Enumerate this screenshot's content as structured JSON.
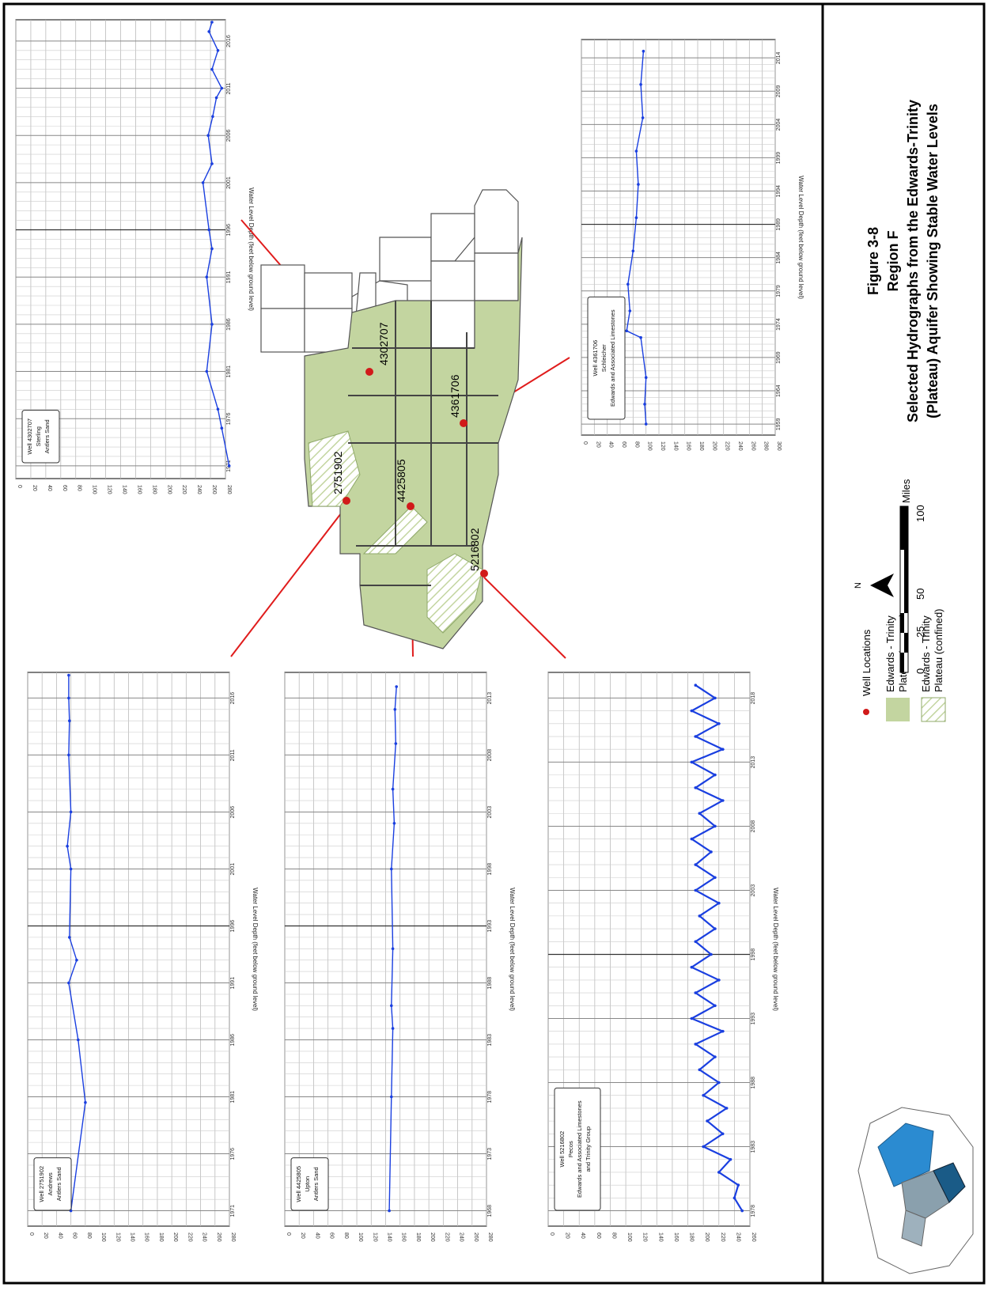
{
  "figure": {
    "title_line1": "Figure 3-8",
    "title_line2": "Region F",
    "title_line3": "Selected Hydrographs from the Edwards-Trinity",
    "title_line4": "(Plateau) Aquifer Showing Stable Water Levels"
  },
  "legend": {
    "well_locations": "Well Locations",
    "outcrop_line1": "Edwards - Trinity",
    "outcrop_line2": "Plateau (outcrop)",
    "confined_line1": "Edwards - Trinity",
    "confined_line2": "Plateau (confined)",
    "outcrop_color": "#c3d5a0",
    "point_color": "#d11a1a"
  },
  "scale_bar": {
    "ticks": [
      "0",
      "25",
      "50",
      "100"
    ],
    "unit": "Miles",
    "north": "N"
  },
  "map": {
    "well_labels": [
      "2751902",
      "4425805",
      "4302707",
      "4361706",
      "5216802"
    ]
  },
  "chart_data": [
    {
      "type": "line",
      "ylabel": "Water Level Depth (feet below ground level)",
      "title_lines": [
        "Well 2751902",
        "Andrews",
        "Antlers Sand"
      ],
      "ylim": [
        280,
        0
      ],
      "yticks": [
        "0",
        "20",
        "40",
        "60",
        "80",
        "100",
        "120",
        "140",
        "160",
        "180",
        "200",
        "220",
        "240",
        "260",
        "280"
      ],
      "xticks": [
        "1971",
        "1976",
        "1981",
        "1986",
        "1991",
        "1996",
        "2001",
        "2006",
        "2011",
        "2016"
      ],
      "x": [
        1971.0,
        1980.5,
        1986.0,
        1991.0,
        1993.0,
        1995.0,
        2001.0,
        2003.0,
        2006.0,
        2011.0,
        2014.0,
        2016.0,
        2018.0
      ],
      "y": [
        60,
        80,
        70,
        57,
        68,
        58,
        60,
        55,
        60,
        57,
        58,
        57,
        57
      ]
    },
    {
      "type": "line",
      "ylabel": "Water Level Depth (feet below ground level)",
      "title_lines": [
        "Well 4425805",
        "Upton",
        "Antlers Sand"
      ],
      "ylim": [
        280,
        0
      ],
      "yticks": [
        "0",
        "20",
        "40",
        "60",
        "80",
        "100",
        "120",
        "140",
        "160",
        "180",
        "200",
        "220",
        "240",
        "260",
        "280"
      ],
      "xticks": [
        "1968",
        "1973",
        "1978",
        "1983",
        "1988",
        "1993",
        "1998",
        "2003",
        "2008",
        "2013"
      ],
      "x": [
        1968.0,
        1978.0,
        1984.0,
        1986.0,
        1991.0,
        1998.0,
        2002.0,
        2005.0,
        2009.0,
        2012.0,
        2014.0
      ],
      "y": [
        145,
        148,
        150,
        148,
        150,
        148,
        152,
        150,
        154,
        153,
        155
      ]
    },
    {
      "type": "line",
      "ylabel": "Water Level Depth (feet below ground level)",
      "title_lines": [
        "Well 5216802",
        "Pecos",
        "Edwards and Associated Limestones",
        "and Trinity Group"
      ],
      "ylim": [
        260,
        0
      ],
      "yticks": [
        "0",
        "20",
        "40",
        "60",
        "80",
        "100",
        "120",
        "140",
        "160",
        "180",
        "200",
        "220",
        "240",
        "260"
      ],
      "xticks": [
        "1978",
        "1983",
        "1988",
        "1993",
        "1998",
        "2003",
        "2008",
        "2013",
        "2018"
      ],
      "x": [
        1978.0,
        1979.0,
        1980.0,
        1981.0,
        1982.0,
        1983.0,
        1984.0,
        1985.0,
        1986.0,
        1987.0,
        1988.0,
        1989.0,
        1990.0,
        1991.0,
        1992.0,
        1993.0,
        1994.0,
        1995.0,
        1996.0,
        1997.0,
        1998.0,
        1999.0,
        2000.0,
        2001.0,
        2002.0,
        2003.0,
        2004.0,
        2005.0,
        2006.0,
        2007.0,
        2008.0,
        2009.0,
        2010.0,
        2011.0,
        2012.0,
        2013.0,
        2014.0,
        2015.0,
        2016.0,
        2017.0,
        2018.0,
        2019.0
      ],
      "y": [
        250,
        240,
        245,
        220,
        235,
        200,
        225,
        205,
        230,
        200,
        220,
        195,
        215,
        190,
        225,
        185,
        215,
        190,
        220,
        185,
        210,
        190,
        215,
        195,
        220,
        190,
        215,
        190,
        210,
        185,
        215,
        195,
        225,
        190,
        215,
        185,
        225,
        190,
        220,
        185,
        215,
        190
      ]
    },
    {
      "type": "line",
      "ylabel": "Water Level Depth (feet below ground level)",
      "title_lines": [
        "Well 4302707",
        "Sterling",
        "Antlers Sand"
      ],
      "ylim": [
        280,
        0
      ],
      "yticks": [
        "0",
        "20",
        "40",
        "60",
        "80",
        "100",
        "120",
        "140",
        "160",
        "180",
        "200",
        "220",
        "240",
        "260",
        "280"
      ],
      "xticks": [
        "1971",
        "1976",
        "1981",
        "1986",
        "1991",
        "1996",
        "2001",
        "2006",
        "2011",
        "2016"
      ],
      "x": [
        1971.0,
        1975.0,
        1977.0,
        1981.0,
        1986.0,
        1991.0,
        1994.0,
        1996.0,
        2001.0,
        2003.0,
        2006.0,
        2008.0,
        2010.0,
        2011.0,
        2013.0,
        2015.0,
        2017.0,
        2018.0
      ],
      "y": [
        285,
        275,
        270,
        255,
        262,
        255,
        262,
        258,
        250,
        262,
        257,
        263,
        268,
        275,
        262,
        270,
        258,
        262
      ]
    },
    {
      "type": "line",
      "ylabel": "Water Level Depth (feet below ground level)",
      "title_lines": [
        "Well 4361706",
        "Schleicher",
        "Edwards and Associated Limestones"
      ],
      "ylim": [
        300,
        0
      ],
      "yticks": [
        "0",
        "20",
        "40",
        "60",
        "80",
        "100",
        "120",
        "140",
        "160",
        "180",
        "200",
        "220",
        "240",
        "260",
        "280",
        "300"
      ],
      "xticks": [
        "1959",
        "1964",
        "1969",
        "1974",
        "1979",
        "1984",
        "1989",
        "1994",
        "1999",
        "2004",
        "2009",
        "2014"
      ],
      "x": [
        1959.0,
        1962.0,
        1966.0,
        1972.0,
        1973.0,
        1976.0,
        1980.0,
        1985.0,
        1990.0,
        1995.0,
        2000.0,
        2005.0,
        2010.0,
        2015.0
      ],
      "y": [
        100,
        98,
        100,
        92,
        70,
        75,
        72,
        80,
        85,
        88,
        85,
        95,
        92,
        96
      ]
    }
  ]
}
